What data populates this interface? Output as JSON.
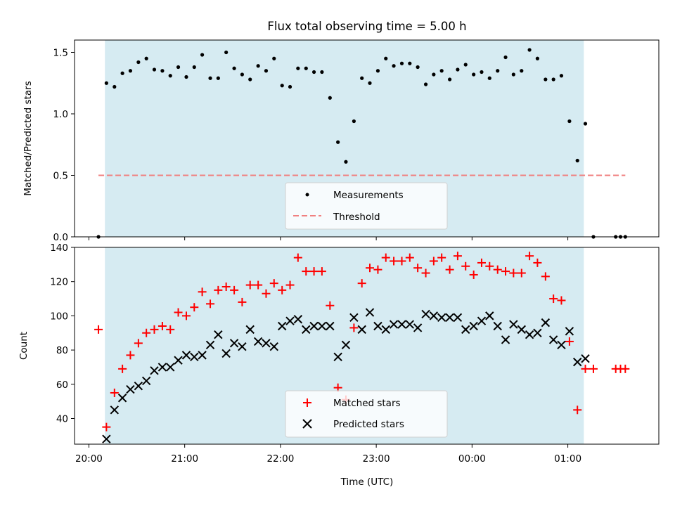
{
  "chart_data": [
    {
      "type": "scatter",
      "title": "Flux total observing time = 5.00 h",
      "ylabel": "Matched/Predicted stars",
      "xlabel": "",
      "ylim": [
        0,
        1.6
      ],
      "yticks": [
        0.0,
        0.5,
        1.0,
        1.5
      ],
      "ytick_labels": [
        "0.0",
        "0.5",
        "1.0",
        "1.5"
      ],
      "xlim_hours": [
        19.85,
        25.95
      ],
      "shaded_span_hours": [
        20.167,
        25.167
      ],
      "shade_color": "#add8e6",
      "legend_position": "lower center",
      "threshold": {
        "name": "Threshold",
        "value": 0.5,
        "x_hours": [
          20.1,
          25.6
        ],
        "color": "#f08080"
      },
      "series": [
        {
          "name": "Measurements",
          "marker": "dot",
          "color": "#000000",
          "x_hours": [
            20.1,
            20.183,
            20.267,
            20.35,
            20.433,
            20.517,
            20.6,
            20.683,
            20.767,
            20.85,
            20.933,
            21.017,
            21.1,
            21.183,
            21.267,
            21.35,
            21.433,
            21.517,
            21.6,
            21.683,
            21.767,
            21.85,
            21.933,
            22.017,
            22.1,
            22.183,
            22.267,
            22.35,
            22.433,
            22.517,
            22.6,
            22.683,
            22.767,
            22.85,
            22.933,
            23.017,
            23.1,
            23.183,
            23.267,
            23.35,
            23.433,
            23.517,
            23.6,
            23.683,
            23.767,
            23.85,
            23.933,
            24.017,
            24.1,
            24.183,
            24.267,
            24.35,
            24.433,
            24.517,
            24.6,
            24.683,
            24.767,
            24.85,
            24.933,
            25.017,
            25.1,
            25.183,
            25.267,
            25.5,
            25.55,
            25.6
          ],
          "y": [
            0,
            1.25,
            1.22,
            1.33,
            1.35,
            1.42,
            1.45,
            1.36,
            1.35,
            1.31,
            1.38,
            1.3,
            1.38,
            1.48,
            1.29,
            1.29,
            1.5,
            1.37,
            1.32,
            1.28,
            1.39,
            1.35,
            1.45,
            1.23,
            1.22,
            1.37,
            1.37,
            1.34,
            1.34,
            1.13,
            0.77,
            0.61,
            0.94,
            1.29,
            1.25,
            1.35,
            1.45,
            1.39,
            1.41,
            1.41,
            1.38,
            1.24,
            1.32,
            1.35,
            1.28,
            1.36,
            1.4,
            1.32,
            1.34,
            1.29,
            1.35,
            1.46,
            1.32,
            1.35,
            1.52,
            1.45,
            1.28,
            1.28,
            1.31,
            0.94,
            0.62,
            0.92,
            0,
            0,
            0,
            0
          ]
        }
      ]
    },
    {
      "type": "scatter",
      "title": "",
      "xlabel": "Time (UTC)",
      "ylabel": "Count",
      "ylim": [
        25,
        140
      ],
      "yticks": [
        40,
        60,
        80,
        100,
        120,
        140
      ],
      "ytick_labels": [
        "40",
        "60",
        "80",
        "100",
        "120",
        "140"
      ],
      "xticks_hours": [
        20,
        21,
        22,
        23,
        24,
        25
      ],
      "xtick_labels": [
        "20:00",
        "21:00",
        "22:00",
        "23:00",
        "00:00",
        "01:00"
      ],
      "xlim_hours": [
        19.85,
        25.95
      ],
      "shaded_span_hours": [
        20.167,
        25.167
      ],
      "legend_position": "lower center",
      "series": [
        {
          "name": "Matched stars",
          "marker": "plus",
          "color": "#ff0000",
          "x_hours": [
            20.1,
            20.183,
            20.267,
            20.35,
            20.433,
            20.517,
            20.6,
            20.683,
            20.767,
            20.85,
            20.933,
            21.017,
            21.1,
            21.183,
            21.267,
            21.35,
            21.433,
            21.517,
            21.6,
            21.683,
            21.767,
            21.85,
            21.933,
            22.017,
            22.1,
            22.183,
            22.267,
            22.35,
            22.433,
            22.517,
            22.6,
            22.683,
            22.767,
            22.85,
            22.933,
            23.017,
            23.1,
            23.183,
            23.267,
            23.35,
            23.433,
            23.517,
            23.6,
            23.683,
            23.767,
            23.85,
            23.933,
            24.017,
            24.1,
            24.183,
            24.267,
            24.35,
            24.433,
            24.517,
            24.6,
            24.683,
            24.767,
            24.85,
            24.933,
            25.017,
            25.1,
            25.183,
            25.267,
            25.5,
            25.55,
            25.6
          ],
          "y": [
            92,
            35,
            55,
            69,
            77,
            84,
            90,
            92,
            94,
            92,
            102,
            100,
            105,
            114,
            107,
            115,
            117,
            115,
            108,
            118,
            118,
            113,
            119,
            115,
            118,
            134,
            126,
            126,
            126,
            106,
            58,
            51,
            93,
            119,
            128,
            127,
            134,
            132,
            132,
            134,
            128,
            125,
            132,
            134,
            127,
            135,
            129,
            124,
            131,
            129,
            127,
            126,
            125,
            125,
            135,
            131,
            123,
            110,
            109,
            85,
            45,
            69,
            69,
            69,
            69,
            69
          ]
        },
        {
          "name": "Predicted stars",
          "marker": "x",
          "color": "#000000",
          "x_hours": [
            20.183,
            20.267,
            20.35,
            20.433,
            20.517,
            20.6,
            20.683,
            20.767,
            20.85,
            20.933,
            21.017,
            21.1,
            21.183,
            21.267,
            21.35,
            21.433,
            21.517,
            21.6,
            21.683,
            21.767,
            21.85,
            21.933,
            22.017,
            22.1,
            22.183,
            22.267,
            22.35,
            22.433,
            22.517,
            22.6,
            22.683,
            22.767,
            22.85,
            22.933,
            23.017,
            23.1,
            23.183,
            23.267,
            23.35,
            23.433,
            23.517,
            23.6,
            23.683,
            23.767,
            23.85,
            23.933,
            24.017,
            24.1,
            24.183,
            24.267,
            24.35,
            24.433,
            24.517,
            24.6,
            24.683,
            24.767,
            24.85,
            24.933,
            25.017,
            25.1,
            25.183
          ],
          "y": [
            28,
            45,
            52,
            57,
            59,
            62,
            68,
            70,
            70,
            74,
            77,
            76,
            77,
            83,
            89,
            78,
            84,
            82,
            92,
            85,
            84,
            82,
            94,
            97,
            98,
            92,
            94,
            94,
            94,
            76,
            83,
            99,
            92,
            102,
            94,
            92,
            95,
            95,
            95,
            93,
            101,
            100,
            99,
            99,
            99,
            92,
            94,
            97,
            100,
            94,
            86,
            95,
            92,
            89,
            90,
            96,
            86,
            83,
            91,
            73,
            75
          ]
        }
      ]
    }
  ]
}
